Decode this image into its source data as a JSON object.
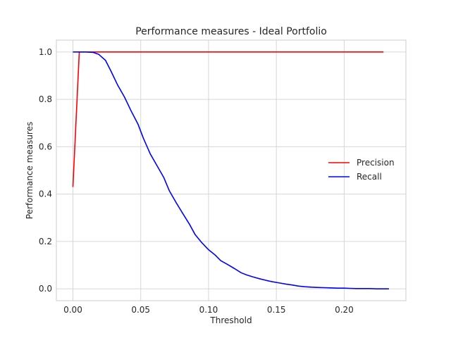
{
  "chart_data": {
    "type": "line",
    "title": "Performance measures - Ideal Portfolio",
    "xlabel": "Threshold",
    "ylabel": "Performance measures",
    "xlim": [
      -0.0122,
      0.2455
    ],
    "ylim": [
      -0.05,
      1.05
    ],
    "xticks": [
      "0.00",
      "0.05",
      "0.10",
      "0.15",
      "0.20"
    ],
    "xtick_values": [
      0.0,
      0.05,
      0.1,
      0.15,
      0.2
    ],
    "yticks": [
      "0.0",
      "0.2",
      "0.4",
      "0.6",
      "0.8",
      "1.0"
    ],
    "ytick_values": [
      0.0,
      0.2,
      0.4,
      0.6,
      0.8,
      1.0
    ],
    "grid": true,
    "legend_position": "center-right",
    "series": [
      {
        "name": "Precision",
        "color": "#ff0000",
        "x": [
          0.0,
          0.0047,
          0.01,
          0.05,
          0.1,
          0.15,
          0.2,
          0.229
        ],
        "y": [
          0.43,
          1.0,
          1.0,
          1.0,
          1.0,
          1.0,
          1.0,
          1.0
        ]
      },
      {
        "name": "Recall",
        "color": "#0000ff",
        "x": [
          0.0,
          0.005,
          0.01,
          0.015,
          0.019,
          0.024,
          0.028,
          0.033,
          0.038,
          0.043,
          0.048,
          0.052,
          0.057,
          0.062,
          0.067,
          0.071,
          0.076,
          0.081,
          0.086,
          0.09,
          0.095,
          0.1,
          0.105,
          0.109,
          0.114,
          0.119,
          0.124,
          0.128,
          0.133,
          0.138,
          0.143,
          0.147,
          0.152,
          0.157,
          0.162,
          0.166,
          0.171,
          0.176,
          0.18,
          0.185,
          0.19,
          0.195,
          0.2,
          0.204,
          0.209,
          0.214,
          0.219,
          0.224,
          0.228,
          0.233
        ],
        "y": [
          1.0,
          1.0,
          1.0,
          0.998,
          0.99,
          0.965,
          0.92,
          0.86,
          0.81,
          0.75,
          0.695,
          0.635,
          0.57,
          0.52,
          0.47,
          0.415,
          0.365,
          0.318,
          0.272,
          0.23,
          0.195,
          0.165,
          0.142,
          0.119,
          0.103,
          0.086,
          0.068,
          0.059,
          0.05,
          0.042,
          0.035,
          0.03,
          0.025,
          0.02,
          0.016,
          0.012,
          0.009,
          0.007,
          0.006,
          0.005,
          0.004,
          0.003,
          0.003,
          0.002,
          0.001,
          0.001,
          0.001,
          0.0,
          0.0,
          0.0
        ]
      }
    ]
  }
}
